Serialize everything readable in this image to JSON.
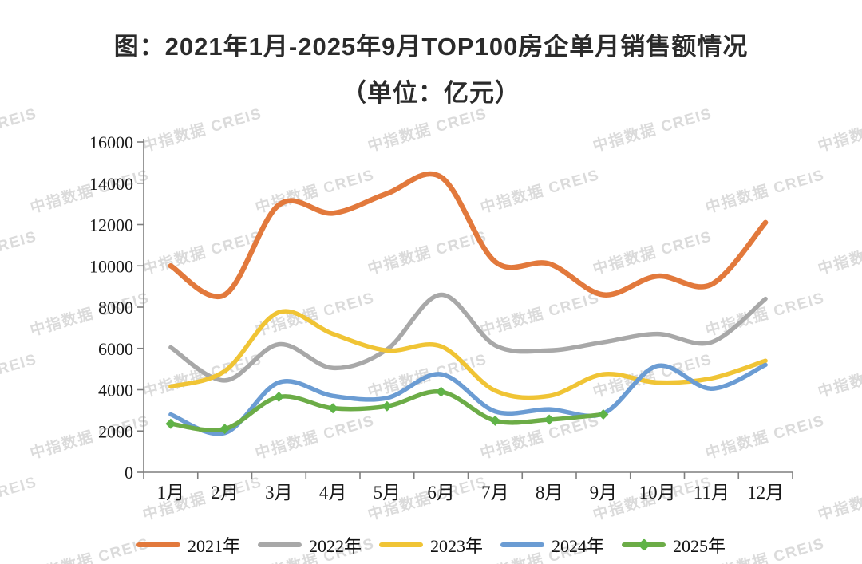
{
  "title": {
    "line1": "图：2021年1月-2025年9月TOP100房企单月销售额情况",
    "line2": "（单位：亿元）",
    "color": "#2b2b2b"
  },
  "watermark": {
    "text": "中指数据 CREIS",
    "color": "#d5d5d5",
    "opacity": 0.85,
    "rotation_deg": -16,
    "grid": {
      "row_start_y": 148,
      "row_step": 77,
      "rows": 8,
      "col_step": 282,
      "odd_row_x0": 35,
      "even_row_x0": 176
    }
  },
  "axes": {
    "line_color": "#7f7f7f",
    "label_color": "#1a1a1a",
    "y_tick_labels": [
      "0",
      "2000",
      "4000",
      "6000",
      "8000",
      "10000",
      "12000",
      "14000",
      "16000"
    ]
  },
  "chart_data": {
    "type": "line",
    "title": "2021年1月-2025年9月TOP100房企单月销售额情况",
    "unit": "亿元",
    "categories": [
      "1月",
      "2月",
      "3月",
      "4月",
      "5月",
      "6月",
      "7月",
      "8月",
      "9月",
      "10月",
      "11月",
      "12月"
    ],
    "ylim": [
      0,
      16000
    ],
    "ytick_step": 2000,
    "grid": false,
    "legend_position": "bottom",
    "smooth": true,
    "series": [
      {
        "name": "2021年",
        "color": "#e2793c",
        "marker": "none",
        "values": [
          10000,
          8600,
          12950,
          12550,
          13500,
          14300,
          10200,
          10100,
          8600,
          9500,
          9100,
          12100
        ]
      },
      {
        "name": "2022年",
        "color": "#a8a8a8",
        "marker": "none",
        "values": [
          6050,
          4450,
          6200,
          5050,
          5950,
          8600,
          6150,
          5900,
          6300,
          6700,
          6300,
          8400
        ]
      },
      {
        "name": "2023年",
        "color": "#f0c435",
        "marker": "none",
        "values": [
          4150,
          4900,
          7750,
          6700,
          5900,
          6100,
          3950,
          3700,
          4750,
          4350,
          4550,
          5400
        ]
      },
      {
        "name": "2024年",
        "color": "#6b9cd3",
        "marker": "none",
        "values": [
          2800,
          1900,
          4350,
          3700,
          3600,
          4750,
          2950,
          3050,
          2850,
          5150,
          4050,
          5200
        ]
      },
      {
        "name": "2025年",
        "color": "#6cac47",
        "marker": "diamond",
        "marker_color": "#5fb347",
        "values": [
          2350,
          2100,
          3650,
          3100,
          3200,
          3900,
          2500,
          2550,
          2800
        ]
      }
    ]
  }
}
